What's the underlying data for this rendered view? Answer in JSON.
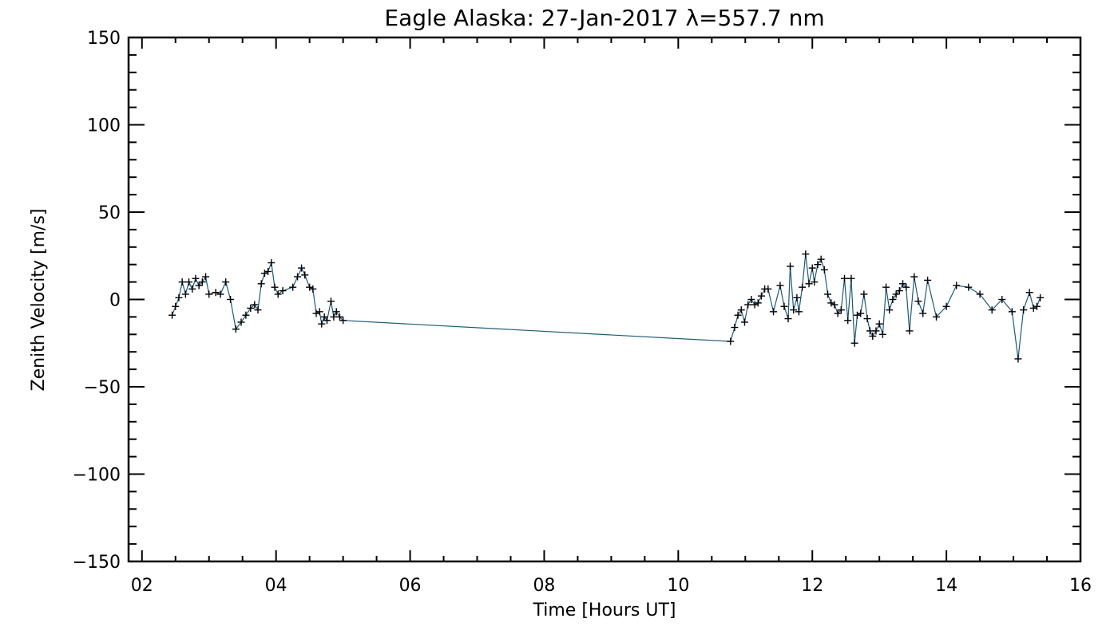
{
  "chart_data": {
    "type": "line",
    "title": "Eagle Alaska: 27-Jan-2017 λ=557.7 nm",
    "xlabel": "Time [Hours UT]",
    "ylabel": "Zenith Velocity [m/s]",
    "xlim": [
      1.8,
      16.0
    ],
    "ylim": [
      -150,
      150
    ],
    "x_ticks": [
      2,
      4,
      6,
      8,
      10,
      12,
      14,
      16
    ],
    "x_tick_labels": [
      "02",
      "04",
      "06",
      "08",
      "10",
      "12",
      "14",
      "16"
    ],
    "y_ticks": [
      150,
      100,
      50,
      0,
      -50,
      -100,
      -150
    ],
    "y_tick_labels": [
      "150",
      "100",
      "50",
      "0",
      "−50",
      "−100",
      "−150"
    ],
    "grid": false,
    "line_color": "#1e5a78",
    "marker_color": "#000000",
    "marker": "plus",
    "series": [
      {
        "x": [
          2.45,
          2.5,
          2.55,
          2.6,
          2.65,
          2.7,
          2.75,
          2.8,
          2.85,
          2.9,
          2.95,
          3.0,
          3.1,
          3.17,
          3.25,
          3.32,
          3.4,
          3.48,
          3.55,
          3.62,
          3.68,
          3.73,
          3.78,
          3.83,
          3.88,
          3.93,
          3.98,
          4.03,
          4.1,
          4.25,
          4.32,
          4.38,
          4.43,
          4.5,
          4.55,
          4.6,
          4.65,
          4.68,
          4.72,
          4.76,
          4.82,
          4.86,
          4.9,
          4.95,
          5.0,
          10.78,
          10.84,
          10.89,
          10.94,
          10.99,
          11.04,
          11.09,
          11.14,
          11.19,
          11.24,
          11.29,
          11.34,
          11.42,
          11.52,
          11.58,
          11.64,
          11.67,
          11.72,
          11.77,
          11.8,
          11.85,
          11.9,
          11.95,
          12.0,
          12.03,
          12.08,
          12.13,
          12.18,
          12.23,
          12.28,
          12.33,
          12.38,
          12.43,
          12.48,
          12.53,
          12.58,
          12.63,
          12.67,
          12.72,
          12.77,
          12.82,
          12.86,
          12.9,
          12.95,
          13.0,
          13.05,
          13.1,
          13.15,
          13.2,
          13.25,
          13.3,
          13.35,
          13.4,
          13.45,
          13.52,
          13.58,
          13.65,
          13.72,
          13.85,
          14.0,
          14.15,
          14.33,
          14.5,
          14.68,
          14.83,
          14.98,
          15.07,
          15.15,
          15.24,
          15.3,
          15.35,
          15.4
        ],
        "y": [
          -9,
          -4,
          1,
          10,
          3,
          10,
          6,
          12,
          8,
          10,
          13,
          3,
          4,
          3,
          10,
          0,
          -17,
          -13,
          -9,
          -5,
          -3,
          -6,
          9,
          15,
          16,
          21,
          7,
          3,
          5,
          7,
          13,
          18,
          14,
          7,
          6,
          -8,
          -7,
          -14,
          -10,
          -12,
          -1,
          -10,
          -7,
          -10,
          -12,
          -24,
          -16,
          -9,
          -6,
          -13,
          -3,
          0,
          -3,
          -2,
          2,
          6,
          6,
          -7,
          8,
          -4,
          -11,
          19,
          -6,
          1,
          -7,
          7,
          26,
          9,
          18,
          10,
          20,
          23,
          17,
          3,
          -2,
          -3,
          -8,
          -6,
          12,
          -12,
          12,
          -25,
          -9,
          -8,
          3,
          -11,
          -18,
          -21,
          -18,
          -14,
          -20,
          7,
          -6,
          0,
          3,
          5,
          9,
          7,
          -18,
          13,
          -1,
          -8,
          11,
          -10,
          -4,
          8,
          7,
          3,
          -6,
          0,
          -7,
          -34,
          -6,
          4,
          -5,
          -4,
          1
        ]
      }
    ]
  }
}
